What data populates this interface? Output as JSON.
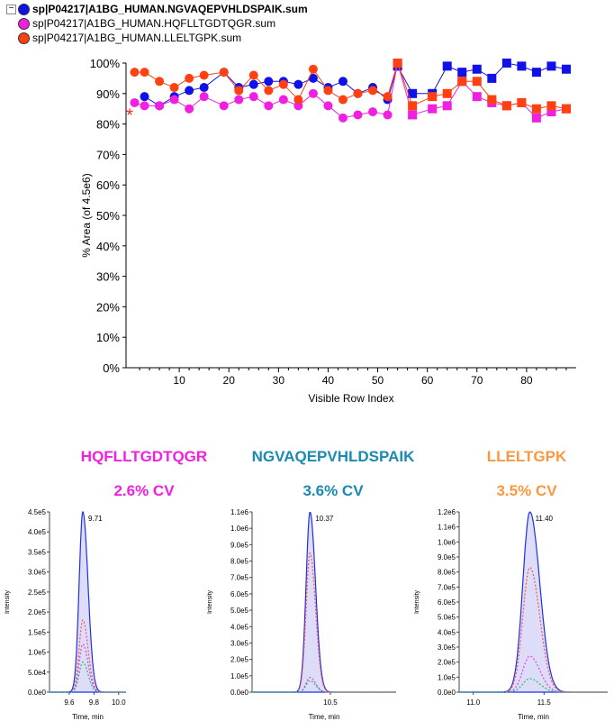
{
  "legend": [
    {
      "label": "sp|P04217|A1BG_HUMAN.NGVAQEPVHLDSPAIK.sum",
      "color": "#1010e8",
      "bold": true
    },
    {
      "label": "sp|P04217|A1BG_HUMAN.HQFLLTGDTQGR.sum",
      "color": "#f020e0"
    },
    {
      "label": "sp|P04217|A1BG_HUMAN.LLELTGPK.sum",
      "color": "#ff4010"
    }
  ],
  "collapse_icon": "−",
  "chart_data": [
    {
      "type": "line",
      "ylabel": "% Area (of 4.5e6)",
      "xlabel": "Visible Row Index",
      "xlim": [
        0,
        90
      ],
      "ylim": [
        0,
        100
      ],
      "xticks": [
        10,
        20,
        30,
        40,
        50,
        60,
        70,
        80
      ],
      "yticks": [
        0,
        10,
        20,
        30,
        40,
        50,
        60,
        70,
        80,
        90,
        100
      ],
      "x": [
        1,
        3,
        6,
        9,
        12,
        15,
        19,
        22,
        25,
        28,
        31,
        34,
        37,
        40,
        43,
        46,
        49,
        52,
        54,
        57,
        61,
        64,
        67,
        70,
        73,
        76,
        79,
        82,
        85,
        88
      ],
      "series": [
        {
          "name": "NGVAQEPVHLDSPAIK",
          "color": "#1010e8",
          "values": [
            null,
            89,
            86,
            89,
            91,
            92,
            97,
            92,
            93,
            94,
            94,
            93,
            95,
            92,
            94,
            90,
            92,
            88,
            99,
            90,
            90,
            99,
            97,
            98,
            95,
            100,
            99,
            97,
            99,
            98
          ]
        },
        {
          "name": "HQFLLTGDTQGR",
          "color": "#f020e0",
          "values": [
            87,
            86,
            86,
            88,
            85,
            89,
            86,
            88,
            89,
            86,
            88,
            86,
            90,
            86,
            82,
            83,
            84,
            83,
            100,
            83,
            85,
            86,
            94,
            89,
            87,
            86,
            87,
            82,
            84,
            85
          ]
        },
        {
          "name": "LLELTGPK",
          "color": "#ff4010",
          "values": [
            97,
            97,
            94,
            92,
            95,
            96,
            97,
            91,
            96,
            91,
            93,
            88,
            98,
            91,
            88,
            90,
            91,
            89,
            100,
            86,
            89,
            90,
            94,
            94,
            88,
            86,
            87,
            85,
            86,
            85
          ]
        }
      ],
      "marker_first": {
        "x": 0,
        "y": 83
      }
    },
    {
      "type": "line",
      "title": "HQFLLTGDTQGR",
      "cv": "2.6% CV",
      "color": "#f020e0",
      "peak_label": "9.71",
      "apex": 9.71,
      "xlim": [
        9.44,
        10.06
      ],
      "ylim": [
        0,
        450000
      ],
      "xticks": [
        "9.6",
        "9.8",
        "10.0"
      ],
      "xtick_vals": [
        9.6,
        9.8,
        10.0
      ],
      "yticks": [
        "0.0e0",
        "5.0e4",
        "1.0e5",
        "1.5e5",
        "2.0e5",
        "2.5e5",
        "3.0e5",
        "3.5e5",
        "4.0e5",
        "4.5e5"
      ],
      "ylabel": "Intensity",
      "xlabel": "Time, min",
      "subpeaks": [
        180000,
        120000,
        75000
      ],
      "width": 0.03
    },
    {
      "type": "line",
      "title": "NGVAQEPVHLDSPAIK",
      "cv": "3.6% CV",
      "color": "#1a8ab0",
      "peak_label": "10.37",
      "apex": 10.37,
      "xlim": [
        10.0,
        10.92
      ],
      "ylim": [
        0,
        1100000
      ],
      "xticks": [
        "10.5"
      ],
      "xtick_vals": [
        10.5
      ],
      "yticks": [
        "0.0e0",
        "1.0e5",
        "2.0e5",
        "3.0e5",
        "4.0e5",
        "5.0e5",
        "6.0e5",
        "7.0e5",
        "8.0e5",
        "9.0e5",
        "1.0e6",
        "1.1e6"
      ],
      "ylabel": "Intensity",
      "xlabel": "Time, min",
      "subpeaks": [
        850000,
        90000,
        70000
      ],
      "width": 0.025
    },
    {
      "type": "line",
      "title": "LLELTGPK",
      "cv": "3.5% CV",
      "color": "#f89840",
      "peak_label": "11.40",
      "apex": 11.4,
      "xlim": [
        10.9,
        11.95
      ],
      "ylim": [
        0,
        1200000
      ],
      "xticks": [
        "11.0",
        "11.5"
      ],
      "xtick_vals": [
        11.0,
        11.5
      ],
      "yticks": [
        "0.0e0",
        "1.0e5",
        "2.0e5",
        "3.0e5",
        "4.0e5",
        "5.0e5",
        "6.0e5",
        "7.0e5",
        "8.0e5",
        "9.0e5",
        "1.0e6",
        "1.1e6",
        "1.2e6"
      ],
      "ylabel": "Intensity",
      "xlabel": "Time, min",
      "subpeaks": [
        830000,
        240000,
        90000
      ],
      "width": 0.05
    }
  ]
}
